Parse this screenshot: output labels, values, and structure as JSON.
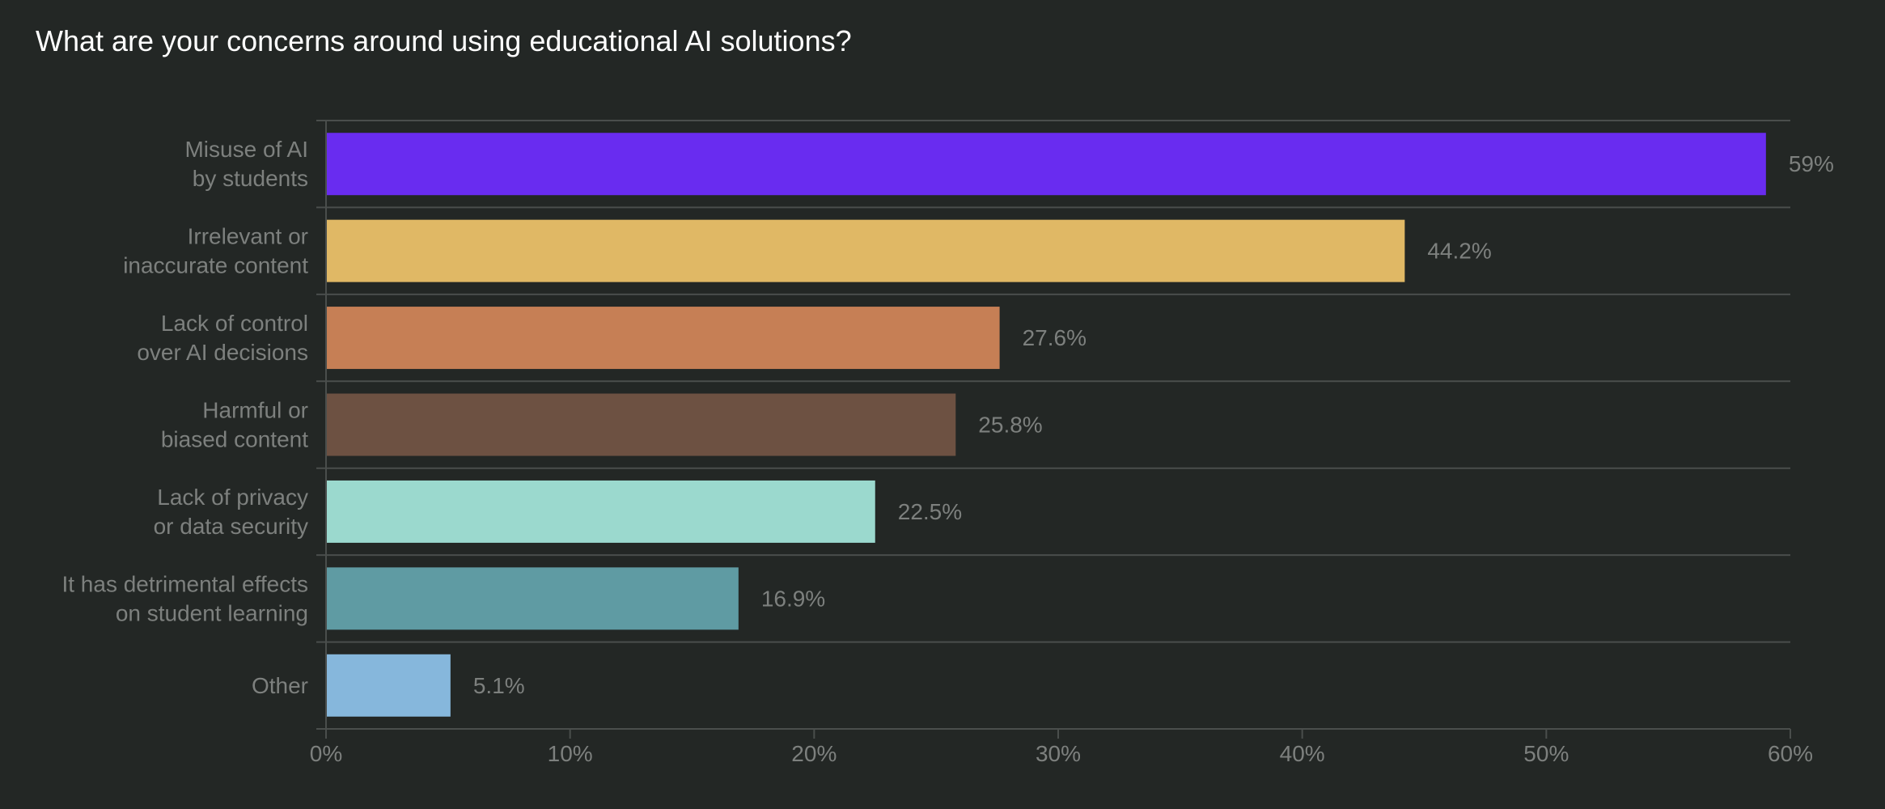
{
  "chart_data": {
    "type": "bar",
    "orientation": "horizontal",
    "title": "What are your concerns around using educational AI solutions?",
    "xlabel": "",
    "ylabel": "",
    "xlim": [
      0,
      60
    ],
    "x_ticks": [
      "0%",
      "10%",
      "20%",
      "30%",
      "40%",
      "50%",
      "60%"
    ],
    "grid": true,
    "legend": "none",
    "categories": [
      [
        "Misuse of AI",
        "by students"
      ],
      [
        "Irrelevant or",
        "inaccurate content"
      ],
      [
        "Lack of control",
        "over AI decisions"
      ],
      [
        "Harmful or",
        "biased content"
      ],
      [
        "Lack of privacy",
        "or data security"
      ],
      [
        "It has detrimental effects",
        "on student learning"
      ],
      [
        "Other"
      ]
    ],
    "values": [
      59,
      44.2,
      27.6,
      25.8,
      22.5,
      16.9,
      5.1
    ],
    "value_labels": [
      "59%",
      "44.2%",
      "27.6%",
      "25.8%",
      "22.5%",
      "16.9%",
      "5.1%"
    ],
    "colors": [
      "#692cf0",
      "#e0b865",
      "#c67f55",
      "#6d5142",
      "#9bd9ce",
      "#5f9ba3",
      "#86b7dc"
    ],
    "background_color": "#232725",
    "text_color": "#7d807e",
    "grid_color": "#4a4e4c"
  }
}
